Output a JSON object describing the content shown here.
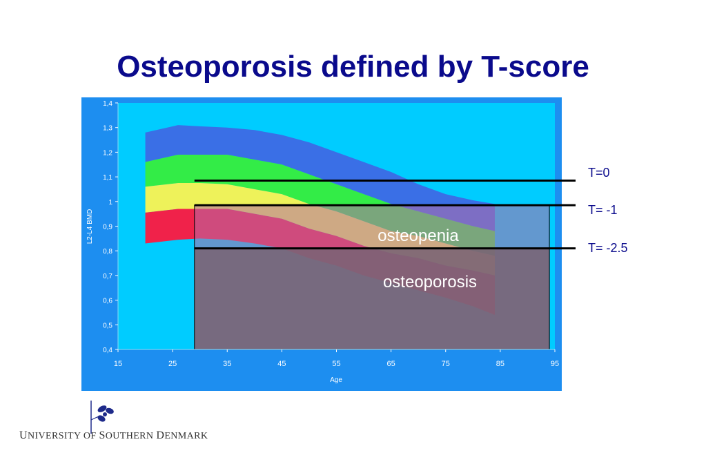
{
  "title": "Osteoporosis defined by T-score",
  "chart_data": {
    "type": "area",
    "xlabel": "Age",
    "ylabel": "L2-L4 BMD",
    "xlim": [
      15,
      95
    ],
    "ylim": [
      0.4,
      1.4
    ],
    "x_ticks": [
      "15",
      "25",
      "35",
      "45",
      "55",
      "65",
      "75",
      "85",
      "95"
    ],
    "y_ticks": [
      "1,4",
      "1,3",
      "1,2",
      "1,1",
      "1",
      "0,9",
      "0,8",
      "0,7",
      "0,6",
      "0,5",
      "0,4"
    ],
    "x": [
      20,
      26,
      30,
      35,
      40,
      45,
      50,
      55,
      60,
      65,
      70,
      75,
      80,
      84
    ],
    "bands": [
      {
        "color": "#3a6fe6",
        "upper": [
          1.28,
          1.31,
          1.305,
          1.3,
          1.29,
          1.27,
          1.24,
          1.2,
          1.16,
          1.12,
          1.07,
          1.03,
          1.005,
          0.99
        ],
        "lower": [
          1.16,
          1.19,
          1.19,
          1.19,
          1.17,
          1.15,
          1.11,
          1.07,
          1.03,
          0.99,
          0.96,
          0.93,
          0.9,
          0.88
        ]
      },
      {
        "color": "#33ec47",
        "upper": [
          1.16,
          1.19,
          1.19,
          1.19,
          1.17,
          1.15,
          1.11,
          1.07,
          1.03,
          0.99,
          0.96,
          0.93,
          0.9,
          0.88
        ],
        "lower": [
          1.06,
          1.075,
          1.075,
          1.07,
          1.05,
          1.03,
          0.99,
          0.96,
          0.92,
          0.88,
          0.86,
          0.83,
          0.8,
          0.78
        ]
      },
      {
        "color": "#eef25a",
        "upper": [
          1.06,
          1.075,
          1.075,
          1.07,
          1.05,
          1.03,
          0.99,
          0.96,
          0.92,
          0.88,
          0.86,
          0.83,
          0.8,
          0.78
        ],
        "lower": [
          0.955,
          0.97,
          0.97,
          0.97,
          0.95,
          0.93,
          0.89,
          0.86,
          0.82,
          0.79,
          0.77,
          0.74,
          0.72,
          0.7
        ]
      },
      {
        "color": "#f0224a",
        "upper": [
          0.955,
          0.97,
          0.97,
          0.97,
          0.95,
          0.93,
          0.89,
          0.86,
          0.82,
          0.79,
          0.77,
          0.74,
          0.72,
          0.7
        ],
        "lower": [
          0.83,
          0.845,
          0.85,
          0.845,
          0.83,
          0.81,
          0.77,
          0.74,
          0.7,
          0.67,
          0.64,
          0.61,
          0.575,
          0.54
        ]
      }
    ],
    "reference_lines": [
      {
        "label": "T=0",
        "value": 1.085,
        "x_start": 29
      },
      {
        "label": "T= -1",
        "value": 0.985,
        "x_start": 29
      },
      {
        "label": "T= -2.5",
        "value": 0.81,
        "x_start": 29
      }
    ],
    "regions": [
      {
        "label": "osteopenia",
        "color": "#b46ea8",
        "y_from": 0.81,
        "y_to": 0.985
      },
      {
        "label": "osteoporosis",
        "color": "#7d6478",
        "y_from": 0.4,
        "y_to": 0.81
      }
    ],
    "region_x": [
      29,
      94
    ],
    "colors": {
      "frame": "#1d8ef0",
      "plot": "#00ccff"
    },
    "grid": false,
    "legend": "none"
  },
  "logo": {
    "text_parts": [
      "U",
      "NIVERSITY OF ",
      "S",
      "OUTHERN ",
      "D",
      "ENMARK"
    ],
    "icon": "flower-leaf-icon"
  }
}
